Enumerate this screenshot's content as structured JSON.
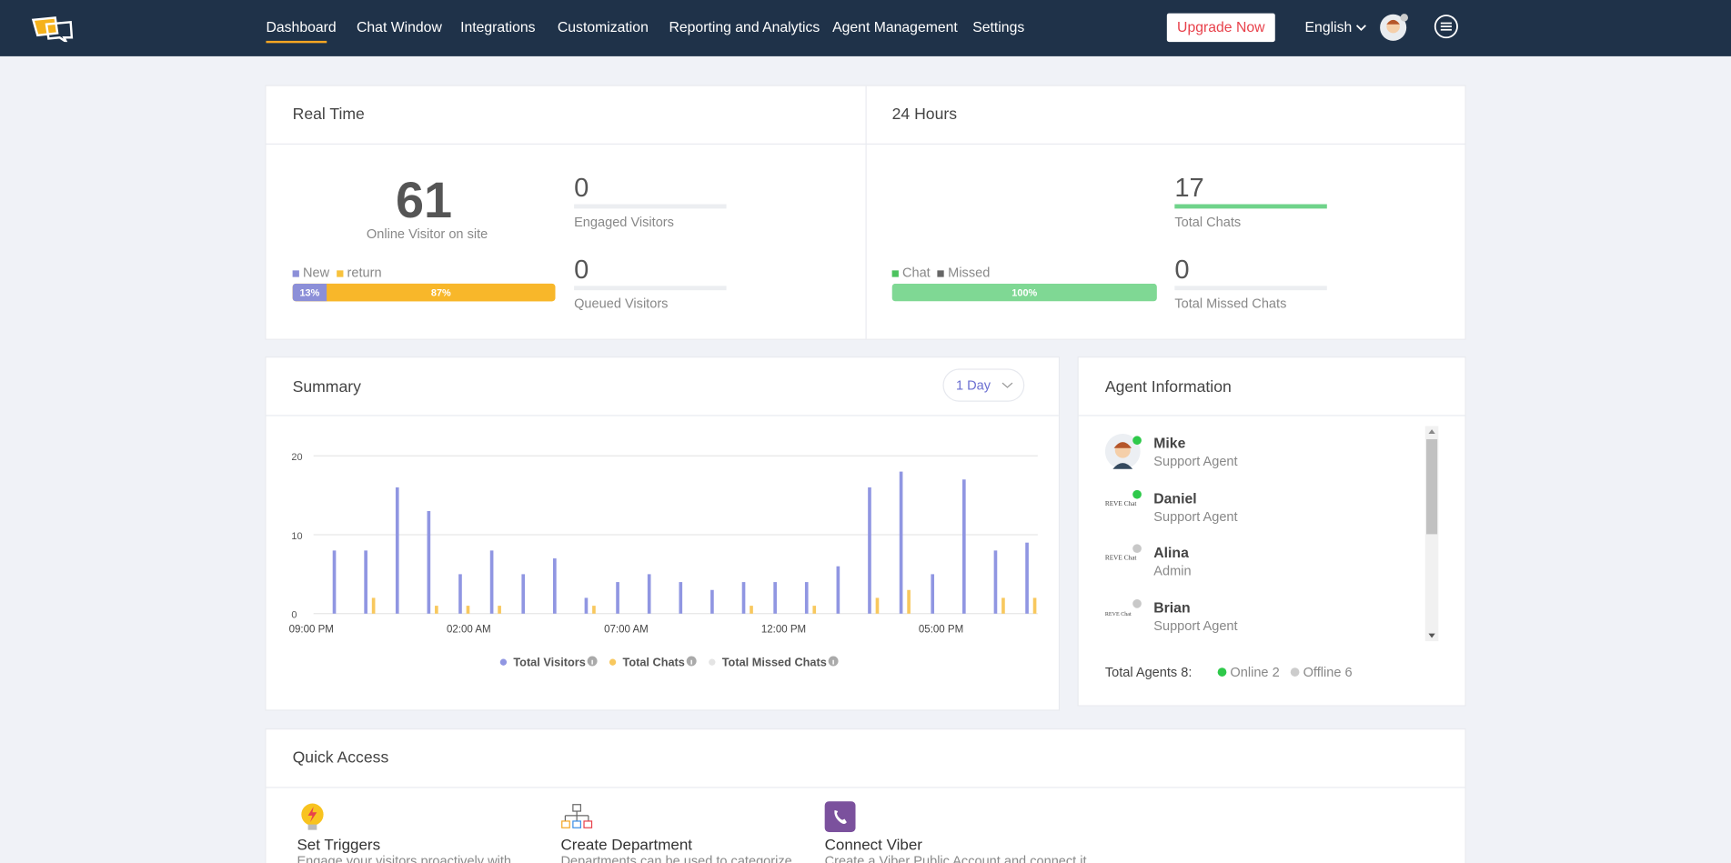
{
  "nav": {
    "items": [
      "Dashboard",
      "Chat Window",
      "Integrations",
      "Customization",
      "Reporting and Analytics",
      "Agent Management",
      "Settings"
    ],
    "upgrade": "Upgrade Now",
    "language": "English"
  },
  "real_time": {
    "title": "Real Time",
    "online_visitors": 61,
    "online_label": "Online Visitor on site",
    "engaged": 0,
    "engaged_label": "Engaged Visitors",
    "queued": 0,
    "queued_label": "Queued Visitors",
    "legend": [
      "New",
      "return"
    ],
    "new_share": {
      "value": 13,
      "label": "13%"
    },
    "return_share": {
      "value": 87,
      "label": "87%"
    }
  },
  "last_24_hours": {
    "title": "24 Hours",
    "total_chats": 17,
    "total_chats_label": "Total Chats",
    "missed": 0,
    "missed_label": "Total Missed Chats",
    "legend": [
      "Chat",
      "Missed"
    ],
    "chat_share": {
      "value": 100,
      "label": "100%"
    }
  },
  "summary": {
    "title": "Summary",
    "range": "1 Day"
  },
  "chart_data": {
    "type": "bar",
    "ylim": [
      0,
      20
    ],
    "yticks": [
      0,
      10,
      20
    ],
    "grid": true,
    "x_labels": [
      "09:00 PM",
      "02:00 AM",
      "07:00 AM",
      "12:00 PM",
      "05:00 PM"
    ],
    "series": [
      {
        "name": "Total Visitors",
        "color": "#9096e2",
        "values": [
          8,
          8,
          16,
          13,
          5,
          8,
          5,
          7,
          2,
          4,
          5,
          4,
          3,
          4,
          4,
          4,
          6,
          16,
          18,
          5,
          17,
          8,
          9
        ]
      },
      {
        "name": "Total Chats",
        "color": "#f8c85e",
        "values": [
          0,
          2,
          0,
          1,
          1,
          1,
          0,
          0,
          1,
          0,
          0,
          0,
          0,
          1,
          0,
          1,
          0,
          2,
          3,
          0,
          0,
          2,
          2
        ]
      },
      {
        "name": "Total Missed Chats",
        "color": "#e4e4e4",
        "values": [
          0,
          0,
          0,
          0,
          0,
          0,
          0,
          0,
          0,
          0,
          0,
          0,
          0,
          0,
          0,
          0,
          0,
          0,
          0,
          0,
          0,
          0,
          0
        ]
      }
    ]
  },
  "agents": {
    "title": "Agent Information",
    "list": [
      {
        "name": "Mike",
        "role": "Support Agent",
        "online": true
      },
      {
        "name": "Daniel",
        "role": "Support Agent",
        "online": true,
        "logo_text": "REVE Chat"
      },
      {
        "name": "Alina",
        "role": "Admin",
        "online": false,
        "logo_text": "REVE Chat"
      },
      {
        "name": "Brian",
        "role": "Support Agent",
        "online": false,
        "logo_text": "REVE Chat"
      }
    ],
    "total_label": "Total Agents 8:",
    "online": "Online 2",
    "offline": "Offline 6"
  },
  "quick_access": {
    "title": "Quick Access",
    "items": [
      {
        "title": "Set Triggers",
        "description": "Engage your visitors proactively with"
      },
      {
        "title": "Create Department",
        "description": "Departments can be used to categorize"
      },
      {
        "title": "Connect Viber",
        "description": "Create a Viber Public Account and connect it"
      }
    ]
  }
}
